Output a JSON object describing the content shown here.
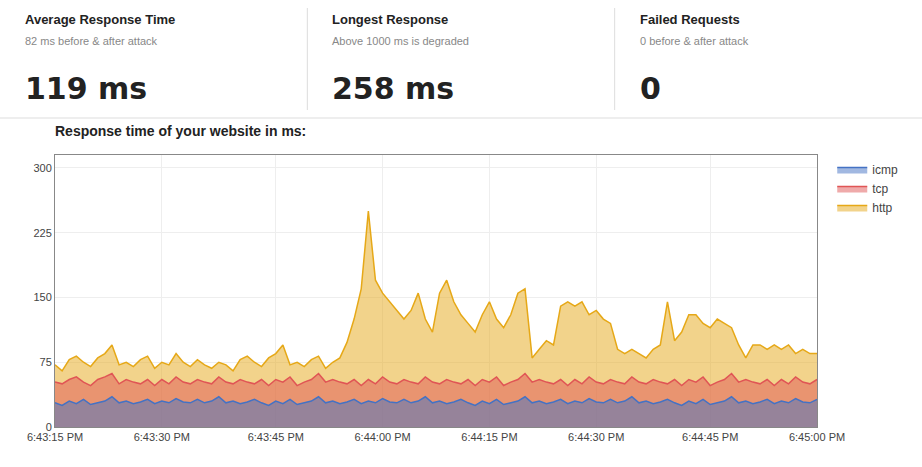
{
  "chart_data": {
    "type": "area",
    "title": "Response time of your website in ms:",
    "annotations": [
      {
        "title": "Average Response Time",
        "subtitle": "82 ms before & after attack",
        "text": "119 ms"
      },
      {
        "title": "Longest Response",
        "subtitle": "Above 1000 ms is degraded",
        "text": "258 ms"
      },
      {
        "title": "Failed Requests",
        "subtitle": "0 before & after attack",
        "text": "0"
      }
    ],
    "categories": [
      "6:43:15 PM",
      null,
      null,
      null,
      null,
      null,
      null,
      null,
      null,
      null,
      null,
      null,
      null,
      null,
      null,
      "6:43:30 PM",
      null,
      null,
      null,
      null,
      null,
      null,
      null,
      null,
      null,
      null,
      null,
      null,
      null,
      null,
      null,
      "6:43:45 PM",
      null,
      null,
      null,
      null,
      null,
      null,
      null,
      null,
      null,
      null,
      null,
      null,
      null,
      null,
      "6:44:00 PM",
      null,
      null,
      null,
      null,
      null,
      null,
      null,
      null,
      null,
      null,
      null,
      null,
      null,
      null,
      "6:44:15 PM",
      null,
      null,
      null,
      null,
      null,
      null,
      null,
      null,
      null,
      null,
      null,
      null,
      null,
      null,
      "6:44:30 PM",
      null,
      null,
      null,
      null,
      null,
      null,
      null,
      null,
      null,
      null,
      null,
      null,
      null,
      null,
      null,
      "6:44:45 PM",
      null,
      null,
      null,
      null,
      null,
      null,
      null,
      null,
      null,
      null,
      null,
      null,
      null,
      null,
      "6:45:00 PM"
    ],
    "series": [
      {
        "name": "icmp",
        "color": "#4472c4",
        "values": [
          28,
          25,
          30,
          27,
          32,
          26,
          28,
          30,
          35,
          28,
          30,
          27,
          29,
          32,
          27,
          30,
          28,
          33,
          29,
          28,
          32,
          28,
          30,
          35,
          28,
          30,
          27,
          29,
          32,
          28,
          25,
          30,
          27,
          32,
          26,
          28,
          30,
          35,
          28,
          30,
          27,
          29,
          32,
          27,
          30,
          28,
          33,
          29,
          28,
          32,
          28,
          30,
          35,
          28,
          30,
          27,
          29,
          32,
          28,
          25,
          30,
          27,
          32,
          26,
          28,
          30,
          35,
          28,
          30,
          27,
          29,
          32,
          27,
          30,
          28,
          33,
          29,
          28,
          32,
          28,
          30,
          35,
          28,
          30,
          27,
          29,
          32,
          28,
          25,
          30,
          27,
          32,
          26,
          28,
          30,
          35,
          28,
          30,
          27,
          29,
          32,
          27,
          30,
          28,
          33,
          29,
          28,
          32
        ]
      },
      {
        "name": "tcp",
        "color": "#e05555",
        "values": [
          52,
          50,
          55,
          58,
          52,
          48,
          55,
          58,
          62,
          50,
          55,
          52,
          50,
          55,
          48,
          55,
          50,
          58,
          52,
          50,
          55,
          52,
          50,
          58,
          52,
          50,
          55,
          52,
          50,
          55,
          48,
          55,
          52,
          58,
          48,
          52,
          55,
          62,
          52,
          55,
          52,
          50,
          55,
          48,
          55,
          50,
          58,
          52,
          50,
          55,
          52,
          50,
          58,
          52,
          50,
          55,
          52,
          50,
          55,
          48,
          55,
          52,
          58,
          48,
          52,
          55,
          62,
          52,
          55,
          52,
          50,
          55,
          48,
          55,
          50,
          58,
          52,
          50,
          55,
          52,
          50,
          58,
          52,
          50,
          55,
          52,
          50,
          55,
          48,
          55,
          52,
          58,
          48,
          52,
          55,
          62,
          52,
          55,
          52,
          50,
          55,
          48,
          55,
          50,
          58,
          52,
          50,
          55
        ]
      },
      {
        "name": "http",
        "color": "#e6a817",
        "values": [
          72,
          65,
          78,
          82,
          75,
          70,
          80,
          85,
          95,
          72,
          75,
          70,
          78,
          82,
          68,
          75,
          72,
          85,
          75,
          70,
          78,
          72,
          68,
          75,
          72,
          65,
          78,
          82,
          75,
          70,
          80,
          85,
          95,
          72,
          75,
          70,
          78,
          82,
          68,
          75,
          80,
          98,
          125,
          160,
          250,
          170,
          155,
          145,
          135,
          125,
          135,
          155,
          125,
          110,
          155,
          170,
          145,
          130,
          120,
          110,
          130,
          145,
          125,
          115,
          130,
          155,
          160,
          80,
          90,
          100,
          95,
          140,
          145,
          140,
          145,
          130,
          135,
          125,
          120,
          90,
          85,
          90,
          85,
          80,
          90,
          95,
          145,
          100,
          110,
          130,
          130,
          120,
          115,
          125,
          120,
          115,
          95,
          80,
          95,
          95,
          90,
          95,
          90,
          95,
          85,
          90,
          85,
          85
        ]
      }
    ],
    "ylim": [
      0,
      315
    ],
    "yticks": [
      0,
      75,
      150,
      225,
      300
    ],
    "grid": true,
    "legend": "right"
  }
}
